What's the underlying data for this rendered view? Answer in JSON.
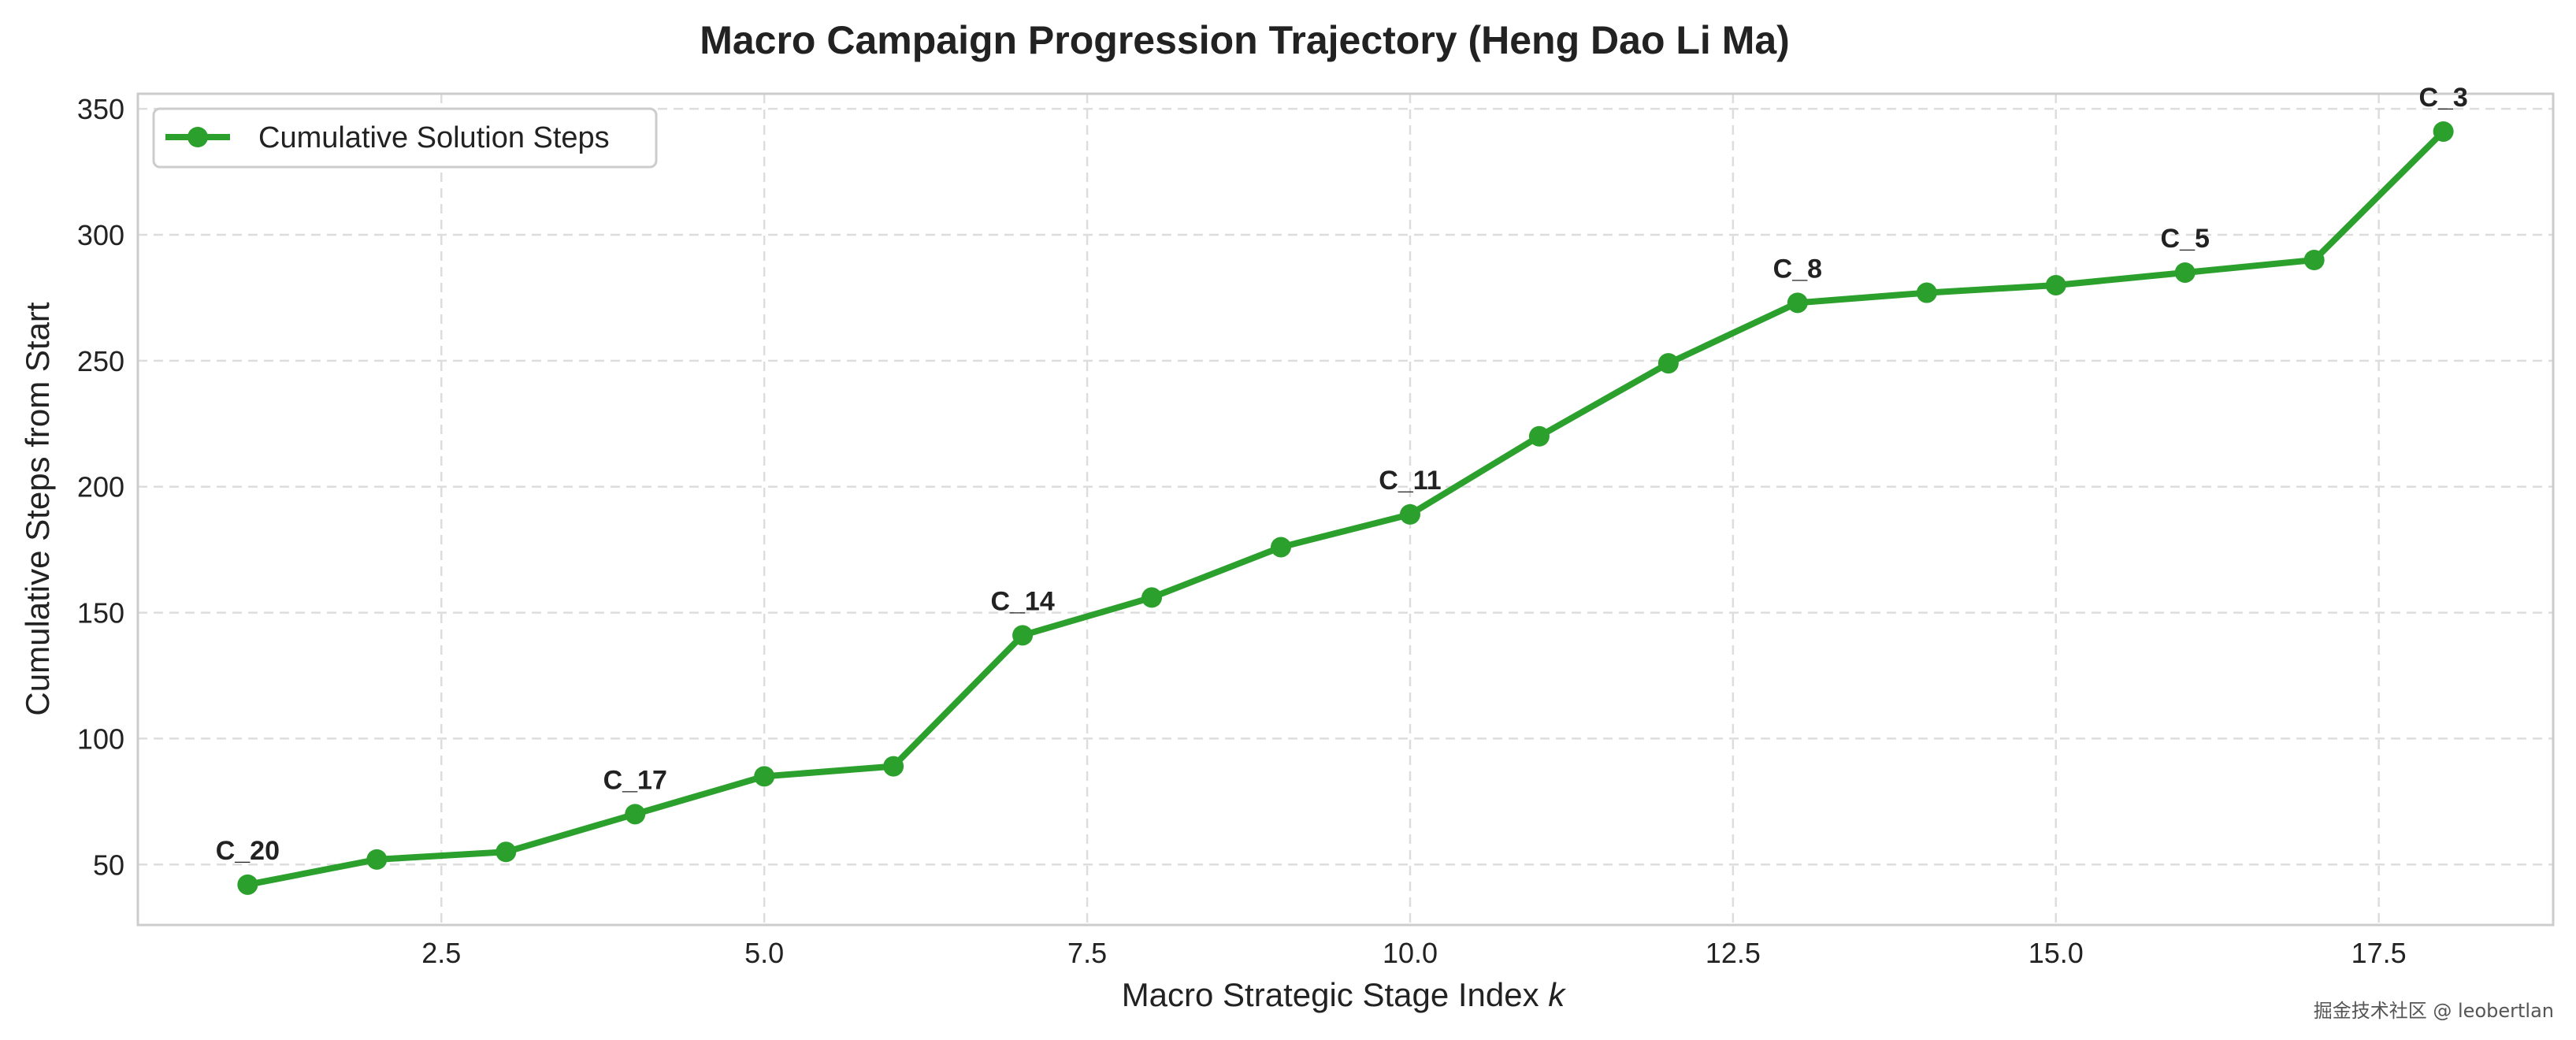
{
  "chart_data": {
    "type": "line",
    "title": "Macro Campaign Progression Trajectory (Heng Dao Li Ma)",
    "xlabel": "Macro Strategic Stage Index",
    "xlabel_var": "k",
    "ylabel": "Cumulative Steps from Start",
    "xlim": [
      0.15,
      18.85
    ],
    "ylim": [
      26,
      356
    ],
    "xticks": [
      2.5,
      5.0,
      7.5,
      10.0,
      12.5,
      15.0,
      17.5
    ],
    "xtick_labels": [
      "2.5",
      "5.0",
      "7.5",
      "10.0",
      "12.5",
      "15.0",
      "17.5"
    ],
    "yticks": [
      50,
      100,
      150,
      200,
      250,
      300,
      350
    ],
    "ytick_labels": [
      "50",
      "100",
      "150",
      "200",
      "250",
      "300",
      "350"
    ],
    "grid": true,
    "legend_position": "top-left",
    "series": [
      {
        "name": "Cumulative Solution Steps",
        "color": "#2ca02c",
        "marker": "circle",
        "x": [
          1,
          2,
          3,
          4,
          5,
          6,
          7,
          8,
          9,
          10,
          11,
          12,
          13,
          14,
          15,
          16,
          17,
          18
        ],
        "y": [
          42,
          52,
          55,
          70,
          85,
          89,
          141,
          156,
          176,
          189,
          220,
          249,
          273,
          277,
          280,
          285,
          290,
          341
        ]
      }
    ],
    "annotations": [
      {
        "x": 1,
        "y": 42,
        "text": "C_20"
      },
      {
        "x": 4,
        "y": 70,
        "text": "C_17"
      },
      {
        "x": 7,
        "y": 141,
        "text": "C_14"
      },
      {
        "x": 10,
        "y": 189,
        "text": "C_11"
      },
      {
        "x": 13,
        "y": 273,
        "text": "C_8"
      },
      {
        "x": 16,
        "y": 285,
        "text": "C_5"
      },
      {
        "x": 18,
        "y": 341,
        "text": "C_3"
      }
    ]
  },
  "watermark": "掘金技术社区 @ leobertlan"
}
